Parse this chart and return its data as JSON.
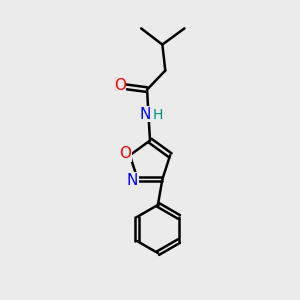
{
  "background_color": "#ebebeb",
  "bond_color": "#000000",
  "bond_width": 1.8,
  "atom_colors": {
    "O": "#ff0000",
    "N": "#0000ff",
    "H": "#008b8b"
  },
  "font_size": 10,
  "figsize": [
    3.0,
    3.0
  ],
  "dpi": 100,
  "xlim": [
    0,
    10
  ],
  "ylim": [
    0,
    10
  ]
}
